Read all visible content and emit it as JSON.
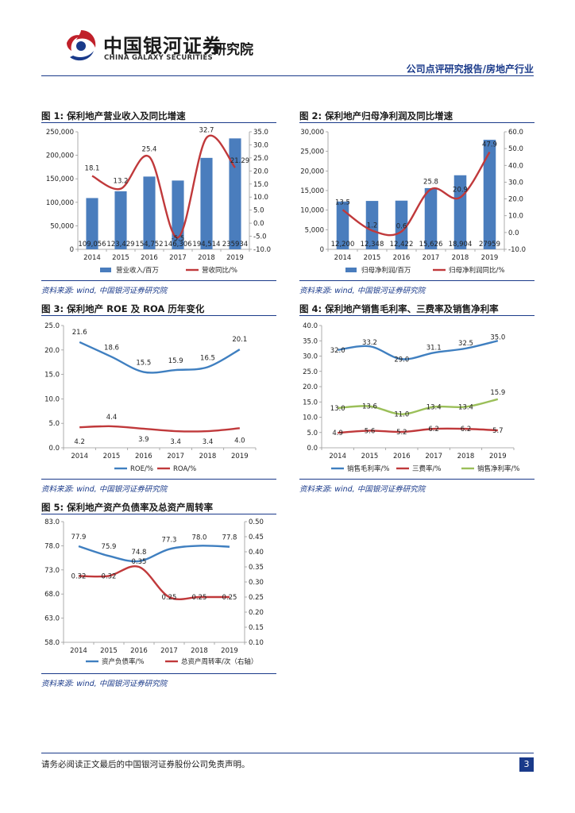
{
  "header": {
    "company_cn": "中国银河证券",
    "company_en": "CHINA GALAXY SECURITIES",
    "institute": "研究院",
    "report_type": "公司点评研究报告/房地产行业"
  },
  "figures": [
    {
      "title": "图 1: 保利地产营业收入及同比增速",
      "source": "资料来源: wind, 中国银河证券研究院"
    },
    {
      "title": "图 2: 保利地产归母净利润及同比增速",
      "source": "资料来源: wind, 中国银河证券研究院"
    },
    {
      "title": "图 3: 保利地产 ROE 及 ROA 历年变化",
      "source": "资料来源: wind, 中国银河证券研究院"
    },
    {
      "title": "图 4: 保利地产销售毛利率、三费率及销售净利率",
      "source": "资料来源: wind, 中国银河证券研究院"
    },
    {
      "title": "图 5: 保利地产资产负债率及总资产周转率",
      "source": "资料来源: wind, 中国银河证券研究院"
    }
  ],
  "footer": {
    "disclaimer": "请务必阅读正文最后的中国银河证券股份公司免责声明。",
    "page": "3"
  },
  "chart_data": [
    {
      "type": "bar",
      "categories": [
        "2014",
        "2015",
        "2016",
        "2017",
        "2018",
        "2019"
      ],
      "series": [
        {
          "name": "营业收入/百万",
          "kind": "bar",
          "axis": "left",
          "values": [
            109056,
            123429,
            154752,
            146306,
            194514,
            235934
          ],
          "labels": [
            "109,056",
            "123,429",
            "154,752",
            "146,306",
            "194,514",
            "235934"
          ]
        },
        {
          "name": "营收同比/%",
          "kind": "line",
          "axis": "right",
          "values": [
            18.1,
            13.2,
            25.4,
            -5.5,
            32.7,
            21.29
          ],
          "labels": [
            "18.1",
            "13.2",
            "25.4",
            "-5.5",
            "32.7",
            "21.29"
          ]
        }
      ],
      "ylim": [
        0,
        250000
      ],
      "yticks": [
        "0",
        "50,000",
        "100,000",
        "150,000",
        "200,000",
        "250,000"
      ],
      "y2lim": [
        -10,
        35
      ],
      "y2ticks": [
        "-10.0",
        "-5.0",
        "0.0",
        "5.0",
        "10.0",
        "15.0",
        "20.0",
        "25.0",
        "30.0",
        "35.0"
      ]
    },
    {
      "type": "bar",
      "categories": [
        "2014",
        "2015",
        "2016",
        "2017",
        "2018",
        "2019"
      ],
      "series": [
        {
          "name": "归母净利润/百万",
          "kind": "bar",
          "axis": "left",
          "values": [
            12200,
            12348,
            12422,
            15626,
            18904,
            27959
          ],
          "labels": [
            "12,200",
            "12,348",
            "12,422",
            "15,626",
            "18,904",
            "27959"
          ]
        },
        {
          "name": "归母净利润同比/%",
          "kind": "line",
          "axis": "right",
          "values": [
            13.5,
            1.2,
            0.6,
            25.8,
            20.9,
            47.9
          ],
          "labels": [
            "13.5",
            "1.2",
            "0.6",
            "25.8",
            "20.9",
            "47.9"
          ]
        }
      ],
      "ylim": [
        0,
        30000
      ],
      "yticks": [
        "0",
        "5,000",
        "10,000",
        "15,000",
        "20,000",
        "25,000",
        "30,000"
      ],
      "y2lim": [
        -10,
        60
      ],
      "y2ticks": [
        "-10.0",
        "0.0",
        "10.0",
        "20.0",
        "30.0",
        "40.0",
        "50.0",
        "60.0"
      ]
    },
    {
      "type": "line",
      "categories": [
        "2014",
        "2015",
        "2016",
        "2017",
        "2018",
        "2019"
      ],
      "series": [
        {
          "name": "ROE/%",
          "values": [
            21.6,
            18.6,
            15.5,
            15.9,
            16.5,
            20.1
          ],
          "labels": [
            "21.6",
            "18.6",
            "15.5",
            "15.9",
            "16.5",
            "20.1"
          ]
        },
        {
          "name": "ROA/%",
          "values": [
            4.2,
            4.4,
            3.9,
            3.4,
            3.4,
            4.0
          ],
          "labels": [
            "4.2",
            "4.4",
            "3.9",
            "3.4",
            "3.4",
            "4.0"
          ]
        }
      ],
      "ylim": [
        0,
        25
      ],
      "yticks": [
        "0.0",
        "5.0",
        "10.0",
        "15.0",
        "20.0",
        "25.0"
      ]
    },
    {
      "type": "line",
      "categories": [
        "2014",
        "2015",
        "2016",
        "2017",
        "2018",
        "2019"
      ],
      "series": [
        {
          "name": "销售毛利率/%",
          "values": [
            32.0,
            33.2,
            29.0,
            31.1,
            32.5,
            35.0
          ],
          "labels": [
            "32.0",
            "33.2",
            "29.0",
            "31.1",
            "32.5",
            "35.0"
          ]
        },
        {
          "name": "三费率/%",
          "values": [
            4.9,
            5.6,
            5.2,
            6.2,
            6.2,
            5.7
          ],
          "labels": [
            "4.9",
            "5.6",
            "5.2",
            "6.2",
            "6.2",
            "5.7"
          ]
        },
        {
          "name": "销售净利率/%",
          "values": [
            13.0,
            13.6,
            11.0,
            13.4,
            13.4,
            15.9
          ],
          "labels": [
            "13.0",
            "13.6",
            "11.0",
            "13.4",
            "13.4",
            "15.9"
          ]
        }
      ],
      "ylim": [
        0,
        40
      ],
      "yticks": [
        "0.0",
        "5.0",
        "10.0",
        "15.0",
        "20.0",
        "25.0",
        "30.0",
        "35.0",
        "40.0"
      ]
    },
    {
      "type": "line",
      "categories": [
        "2014",
        "2015",
        "2016",
        "2017",
        "2018",
        "2019"
      ],
      "series": [
        {
          "name": "资产负债率/%",
          "axis": "left",
          "values": [
            77.9,
            75.9,
            74.8,
            77.3,
            78.0,
            77.8
          ],
          "labels": [
            "77.9",
            "75.9",
            "74.8",
            "77.3",
            "78.0",
            "77.8"
          ]
        },
        {
          "name": "总资产周转率/次（右轴）",
          "axis": "right",
          "values": [
            0.32,
            0.32,
            0.35,
            0.25,
            0.25,
            0.25
          ],
          "labels": [
            "0.32",
            "0.32",
            "0.35",
            "0.25",
            "0.25",
            "0.25"
          ]
        }
      ],
      "ylim": [
        58,
        83
      ],
      "yticks": [
        "58.0",
        "63.0",
        "68.0",
        "73.0",
        "78.0",
        "83.0"
      ],
      "y2lim": [
        0.1,
        0.5
      ],
      "y2ticks": [
        "0.10",
        "0.15",
        "0.20",
        "0.25",
        "0.30",
        "0.35",
        "0.40",
        "0.45",
        "0.50"
      ]
    }
  ],
  "colors": {
    "bar": "#4a7dbd",
    "line_red": "#c0393b",
    "line_blue": "#3f7fc0",
    "line_green": "#9bbf59",
    "accent": "#1a3a8a"
  }
}
